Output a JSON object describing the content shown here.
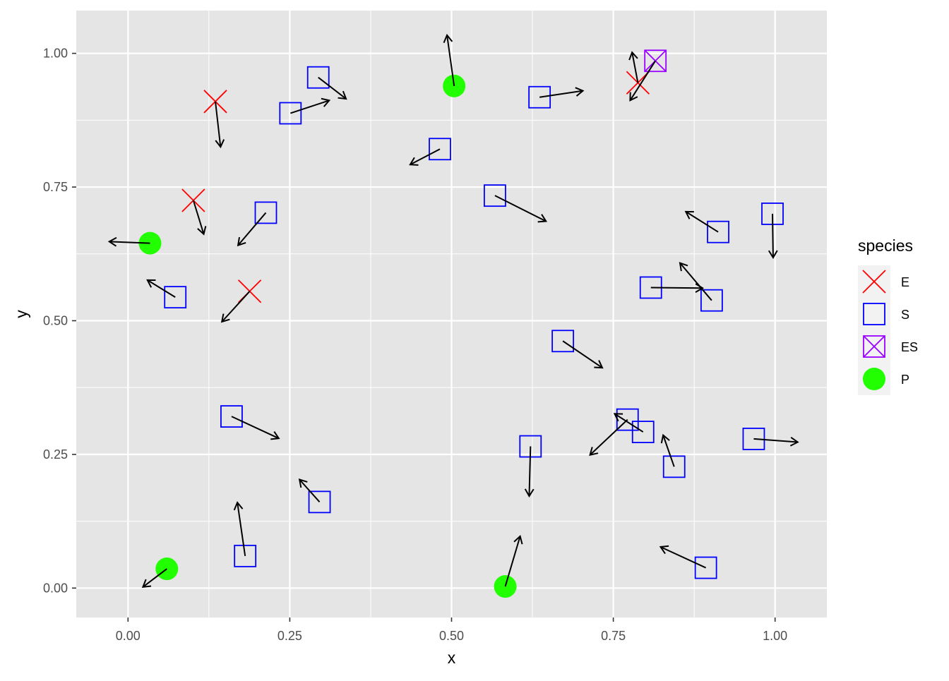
{
  "chart_data": {
    "type": "scatter",
    "title": "",
    "xlabel": "x",
    "ylabel": "y",
    "xlim": [
      -0.08,
      1.08
    ],
    "ylim": [
      -0.055,
      1.08
    ],
    "x_ticks": [
      0,
      0.25,
      0.5,
      0.75,
      1
    ],
    "x_tick_labels": [
      "0.00",
      "0.25",
      "0.50",
      "0.75",
      "1.00"
    ],
    "y_ticks": [
      0,
      0.25,
      0.5,
      0.75,
      1
    ],
    "y_tick_labels": [
      "0.00",
      "0.25",
      "0.50",
      "0.75",
      "1.00"
    ],
    "grid": true,
    "background": "#e5e5e5",
    "legend": {
      "title": "species",
      "placement": "right",
      "entries": [
        {
          "label": "E",
          "shape": "cross",
          "color": "#ff0000"
        },
        {
          "label": "S",
          "shape": "square",
          "color": "#0000ff"
        },
        {
          "label": "ES",
          "shape": "square-cross",
          "color": "#9a00ff"
        },
        {
          "label": "P",
          "shape": "circle",
          "color": "#22ff00"
        }
      ]
    },
    "points": [
      {
        "species": "E",
        "x": 0.135,
        "y": 0.91,
        "xend": 0.143,
        "yend": 0.825
      },
      {
        "species": "E",
        "x": 0.101,
        "y": 0.725,
        "xend": 0.117,
        "yend": 0.662
      },
      {
        "species": "E",
        "x": 0.188,
        "y": 0.555,
        "xend": 0.145,
        "yend": 0.498
      },
      {
        "species": "E",
        "x": 0.788,
        "y": 0.945,
        "xend": 0.779,
        "yend": 1.002
      },
      {
        "species": "S",
        "x": 0.294,
        "y": 0.955,
        "xend": 0.337,
        "yend": 0.915
      },
      {
        "species": "S",
        "x": 0.251,
        "y": 0.888,
        "xend": 0.311,
        "yend": 0.912
      },
      {
        "species": "S",
        "x": 0.482,
        "y": 0.821,
        "xend": 0.436,
        "yend": 0.792
      },
      {
        "species": "S",
        "x": 0.636,
        "y": 0.918,
        "xend": 0.703,
        "yend": 0.93
      },
      {
        "species": "S",
        "x": 0.567,
        "y": 0.734,
        "xend": 0.646,
        "yend": 0.686
      },
      {
        "species": "S",
        "x": 0.213,
        "y": 0.702,
        "xend": 0.17,
        "yend": 0.641
      },
      {
        "species": "S",
        "x": 0.073,
        "y": 0.544,
        "xend": 0.03,
        "yend": 0.576
      },
      {
        "species": "S",
        "x": 0.912,
        "y": 0.666,
        "xend": 0.862,
        "yend": 0.704
      },
      {
        "species": "S",
        "x": 0.996,
        "y": 0.7,
        "xend": 0.997,
        "yend": 0.618
      },
      {
        "species": "S",
        "x": 0.808,
        "y": 0.562,
        "xend": 0.888,
        "yend": 0.561
      },
      {
        "species": "S",
        "x": 0.902,
        "y": 0.538,
        "xend": 0.853,
        "yend": 0.608
      },
      {
        "species": "S",
        "x": 0.672,
        "y": 0.462,
        "xend": 0.733,
        "yend": 0.412
      },
      {
        "species": "S",
        "x": 0.16,
        "y": 0.321,
        "xend": 0.233,
        "yend": 0.28
      },
      {
        "species": "S",
        "x": 0.296,
        "y": 0.161,
        "xend": 0.265,
        "yend": 0.203
      },
      {
        "species": "S",
        "x": 0.181,
        "y": 0.06,
        "xend": 0.169,
        "yend": 0.16
      },
      {
        "species": "S",
        "x": 0.622,
        "y": 0.265,
        "xend": 0.62,
        "yend": 0.172
      },
      {
        "species": "S",
        "x": 0.772,
        "y": 0.315,
        "xend": 0.714,
        "yend": 0.249
      },
      {
        "species": "S",
        "x": 0.796,
        "y": 0.292,
        "xend": 0.752,
        "yend": 0.326
      },
      {
        "species": "S",
        "x": 0.844,
        "y": 0.227,
        "xend": 0.827,
        "yend": 0.286
      },
      {
        "species": "S",
        "x": 0.967,
        "y": 0.279,
        "xend": 1.035,
        "yend": 0.273
      },
      {
        "species": "S",
        "x": 0.893,
        "y": 0.038,
        "xend": 0.823,
        "yend": 0.077
      },
      {
        "species": "ES",
        "x": 0.815,
        "y": 0.986,
        "xend": 0.776,
        "yend": 0.912
      },
      {
        "species": "P",
        "x": 0.504,
        "y": 0.939,
        "xend": 0.493,
        "yend": 1.034
      },
      {
        "species": "P",
        "x": 0.034,
        "y": 0.645,
        "xend": -0.029,
        "yend": 0.648
      },
      {
        "species": "P",
        "x": 0.06,
        "y": 0.036,
        "xend": 0.023,
        "yend": 0.002
      },
      {
        "species": "P",
        "x": 0.583,
        "y": 0.003,
        "xend": 0.606,
        "yend": 0.097
      }
    ]
  }
}
